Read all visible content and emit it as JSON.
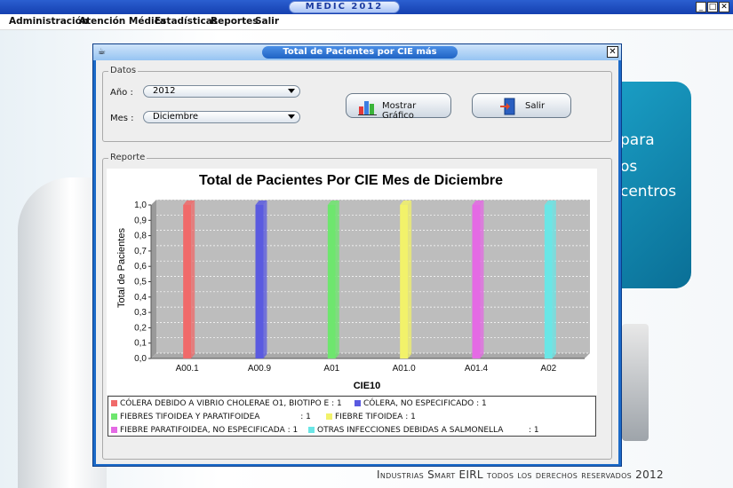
{
  "app": {
    "title": "MEDIC 2012",
    "minimize": "_",
    "maximize": "□",
    "close": "✕"
  },
  "menu": [
    "Administración",
    "Atención Médica",
    "Estadísticas",
    "Reportes",
    "Salir"
  ],
  "background": {
    "panel_lines": [
      "para",
      "os",
      "centros"
    ],
    "footer": "Industrias Smart EIRL todos los derechos reservados 2012"
  },
  "dialog": {
    "title": "Total de Pacientes por CIE más Comunes",
    "datos": {
      "legend": "Datos",
      "anio_label": "Año :",
      "anio_value": "2012",
      "mes_label": "Mes :",
      "mes_value": "Diciembre"
    },
    "buttons": {
      "mostrar": "Mostrar Gráfico",
      "salir": "Salir"
    },
    "reporte_legend": "Reporte"
  },
  "chart_data": {
    "type": "bar",
    "title": "Total de Pacientes Por CIE Mes de Diciembre",
    "xlabel": "CIE10",
    "ylabel": "Total de Pacientes",
    "ylim": [
      0,
      1.0
    ],
    "yticks": [
      "0,0",
      "0,1",
      "0,2",
      "0,3",
      "0,4",
      "0,5",
      "0,6",
      "0,7",
      "0,8",
      "0,9",
      "1,0"
    ],
    "grid": true,
    "legend_position": "bottom",
    "categories": [
      "A00.1",
      "A00.9",
      "A01",
      "A01.0",
      "A01.4",
      "A02"
    ],
    "values": [
      1,
      1,
      1,
      1,
      1,
      1
    ],
    "colors": [
      "#f06a6a",
      "#5a5ae0",
      "#6ee66e",
      "#f2f26a",
      "#e46ae4",
      "#6ae6e6"
    ],
    "legend": [
      "CÓLERA DEBIDO A VIBRIO CHOLERAE O1, BIOTIPO E : 1",
      "CÓLERA, NO ESPECIFICADO : 1",
      "FIEBRES TIFOIDEA Y PARATIFOIDEA                : 1",
      "FIEBRE TIFOIDEA : 1",
      "FIEBRE PARATIFOIDEA, NO ESPECIFICADA : 1",
      "OTRAS INFECCIONES DEBIDAS A SALMONELLA          : 1"
    ]
  }
}
